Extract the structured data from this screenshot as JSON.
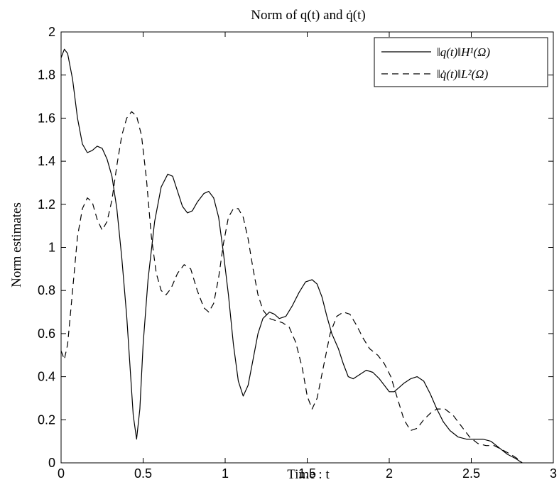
{
  "chart_data": {
    "type": "line",
    "title": "Norm of q(t) and q̇(t)",
    "xlabel": "Time : t",
    "ylabel": "Norm estimates",
    "xlim": [
      0,
      3
    ],
    "ylim": [
      0,
      2
    ],
    "xticks": [
      "0",
      "0.5",
      "1",
      "1.5",
      "2",
      "2.5",
      "3"
    ],
    "yticks": [
      "0",
      "0.2",
      "0.4",
      "0.6",
      "0.8",
      "1",
      "1.2",
      "1.4",
      "1.6",
      "1.8",
      "2"
    ],
    "grid": false,
    "legend_position": "top-right",
    "series": [
      {
        "name": "‖q(t)‖H¹(Ω)",
        "style": "solid",
        "color": "#000000",
        "points": [
          [
            0.0,
            1.88
          ],
          [
            0.02,
            1.92
          ],
          [
            0.04,
            1.9
          ],
          [
            0.07,
            1.78
          ],
          [
            0.1,
            1.6
          ],
          [
            0.13,
            1.48
          ],
          [
            0.16,
            1.44
          ],
          [
            0.19,
            1.45
          ],
          [
            0.22,
            1.47
          ],
          [
            0.25,
            1.46
          ],
          [
            0.28,
            1.41
          ],
          [
            0.31,
            1.33
          ],
          [
            0.34,
            1.18
          ],
          [
            0.37,
            0.95
          ],
          [
            0.4,
            0.68
          ],
          [
            0.42,
            0.45
          ],
          [
            0.44,
            0.22
          ],
          [
            0.46,
            0.11
          ],
          [
            0.48,
            0.25
          ],
          [
            0.5,
            0.55
          ],
          [
            0.53,
            0.85
          ],
          [
            0.57,
            1.12
          ],
          [
            0.61,
            1.28
          ],
          [
            0.65,
            1.34
          ],
          [
            0.68,
            1.33
          ],
          [
            0.71,
            1.26
          ],
          [
            0.74,
            1.19
          ],
          [
            0.77,
            1.16
          ],
          [
            0.8,
            1.17
          ],
          [
            0.83,
            1.21
          ],
          [
            0.87,
            1.25
          ],
          [
            0.9,
            1.26
          ],
          [
            0.93,
            1.23
          ],
          [
            0.96,
            1.14
          ],
          [
            0.99,
            0.97
          ],
          [
            1.02,
            0.78
          ],
          [
            1.05,
            0.55
          ],
          [
            1.08,
            0.38
          ],
          [
            1.11,
            0.31
          ],
          [
            1.14,
            0.36
          ],
          [
            1.17,
            0.48
          ],
          [
            1.2,
            0.6
          ],
          [
            1.23,
            0.67
          ],
          [
            1.27,
            0.7
          ],
          [
            1.3,
            0.69
          ],
          [
            1.33,
            0.67
          ],
          [
            1.37,
            0.68
          ],
          [
            1.41,
            0.73
          ],
          [
            1.45,
            0.79
          ],
          [
            1.49,
            0.84
          ],
          [
            1.53,
            0.85
          ],
          [
            1.56,
            0.83
          ],
          [
            1.59,
            0.77
          ],
          [
            1.62,
            0.68
          ],
          [
            1.65,
            0.6
          ],
          [
            1.69,
            0.53
          ],
          [
            1.72,
            0.46
          ],
          [
            1.75,
            0.4
          ],
          [
            1.78,
            0.39
          ],
          [
            1.82,
            0.41
          ],
          [
            1.86,
            0.43
          ],
          [
            1.9,
            0.42
          ],
          [
            1.94,
            0.39
          ],
          [
            1.97,
            0.36
          ],
          [
            2.0,
            0.33
          ],
          [
            2.03,
            0.33
          ],
          [
            2.06,
            0.35
          ],
          [
            2.09,
            0.37
          ],
          [
            2.13,
            0.39
          ],
          [
            2.17,
            0.4
          ],
          [
            2.21,
            0.38
          ],
          [
            2.25,
            0.32
          ],
          [
            2.29,
            0.25
          ],
          [
            2.33,
            0.19
          ],
          [
            2.37,
            0.15
          ],
          [
            2.42,
            0.12
          ],
          [
            2.47,
            0.11
          ],
          [
            2.52,
            0.11
          ],
          [
            2.57,
            0.11
          ],
          [
            2.62,
            0.1
          ],
          [
            2.67,
            0.07
          ],
          [
            2.72,
            0.04
          ],
          [
            2.77,
            0.02
          ],
          [
            2.81,
            0.0
          ]
        ]
      },
      {
        "name": "‖q̇(t)‖L²(Ω)",
        "style": "dashed",
        "color": "#000000",
        "points": [
          [
            0.0,
            0.52
          ],
          [
            0.02,
            0.48
          ],
          [
            0.04,
            0.55
          ],
          [
            0.07,
            0.8
          ],
          [
            0.1,
            1.05
          ],
          [
            0.13,
            1.18
          ],
          [
            0.16,
            1.23
          ],
          [
            0.19,
            1.21
          ],
          [
            0.22,
            1.13
          ],
          [
            0.25,
            1.08
          ],
          [
            0.28,
            1.12
          ],
          [
            0.31,
            1.22
          ],
          [
            0.34,
            1.38
          ],
          [
            0.37,
            1.52
          ],
          [
            0.4,
            1.6
          ],
          [
            0.43,
            1.63
          ],
          [
            0.46,
            1.61
          ],
          [
            0.49,
            1.52
          ],
          [
            0.52,
            1.32
          ],
          [
            0.55,
            1.05
          ],
          [
            0.58,
            0.88
          ],
          [
            0.61,
            0.8
          ],
          [
            0.64,
            0.78
          ],
          [
            0.67,
            0.81
          ],
          [
            0.71,
            0.88
          ],
          [
            0.75,
            0.92
          ],
          [
            0.79,
            0.9
          ],
          [
            0.83,
            0.8
          ],
          [
            0.87,
            0.72
          ],
          [
            0.9,
            0.7
          ],
          [
            0.93,
            0.74
          ],
          [
            0.96,
            0.86
          ],
          [
            0.99,
            1.02
          ],
          [
            1.02,
            1.14
          ],
          [
            1.05,
            1.18
          ],
          [
            1.08,
            1.18
          ],
          [
            1.11,
            1.14
          ],
          [
            1.14,
            1.04
          ],
          [
            1.17,
            0.9
          ],
          [
            1.2,
            0.78
          ],
          [
            1.23,
            0.71
          ],
          [
            1.27,
            0.67
          ],
          [
            1.31,
            0.66
          ],
          [
            1.35,
            0.65
          ],
          [
            1.39,
            0.63
          ],
          [
            1.43,
            0.56
          ],
          [
            1.47,
            0.44
          ],
          [
            1.5,
            0.31
          ],
          [
            1.53,
            0.25
          ],
          [
            1.56,
            0.3
          ],
          [
            1.6,
            0.45
          ],
          [
            1.64,
            0.6
          ],
          [
            1.68,
            0.68
          ],
          [
            1.72,
            0.7
          ],
          [
            1.76,
            0.69
          ],
          [
            1.8,
            0.64
          ],
          [
            1.84,
            0.58
          ],
          [
            1.88,
            0.53
          ],
          [
            1.93,
            0.5
          ],
          [
            1.97,
            0.46
          ],
          [
            2.01,
            0.4
          ],
          [
            2.05,
            0.3
          ],
          [
            2.09,
            0.2
          ],
          [
            2.13,
            0.15
          ],
          [
            2.17,
            0.16
          ],
          [
            2.21,
            0.2
          ],
          [
            2.25,
            0.23
          ],
          [
            2.29,
            0.25
          ],
          [
            2.34,
            0.25
          ],
          [
            2.39,
            0.22
          ],
          [
            2.44,
            0.17
          ],
          [
            2.49,
            0.12
          ],
          [
            2.54,
            0.09
          ],
          [
            2.59,
            0.08
          ],
          [
            2.64,
            0.08
          ],
          [
            2.69,
            0.06
          ],
          [
            2.74,
            0.04
          ],
          [
            2.78,
            0.02
          ],
          [
            2.81,
            0.0
          ]
        ]
      }
    ]
  }
}
